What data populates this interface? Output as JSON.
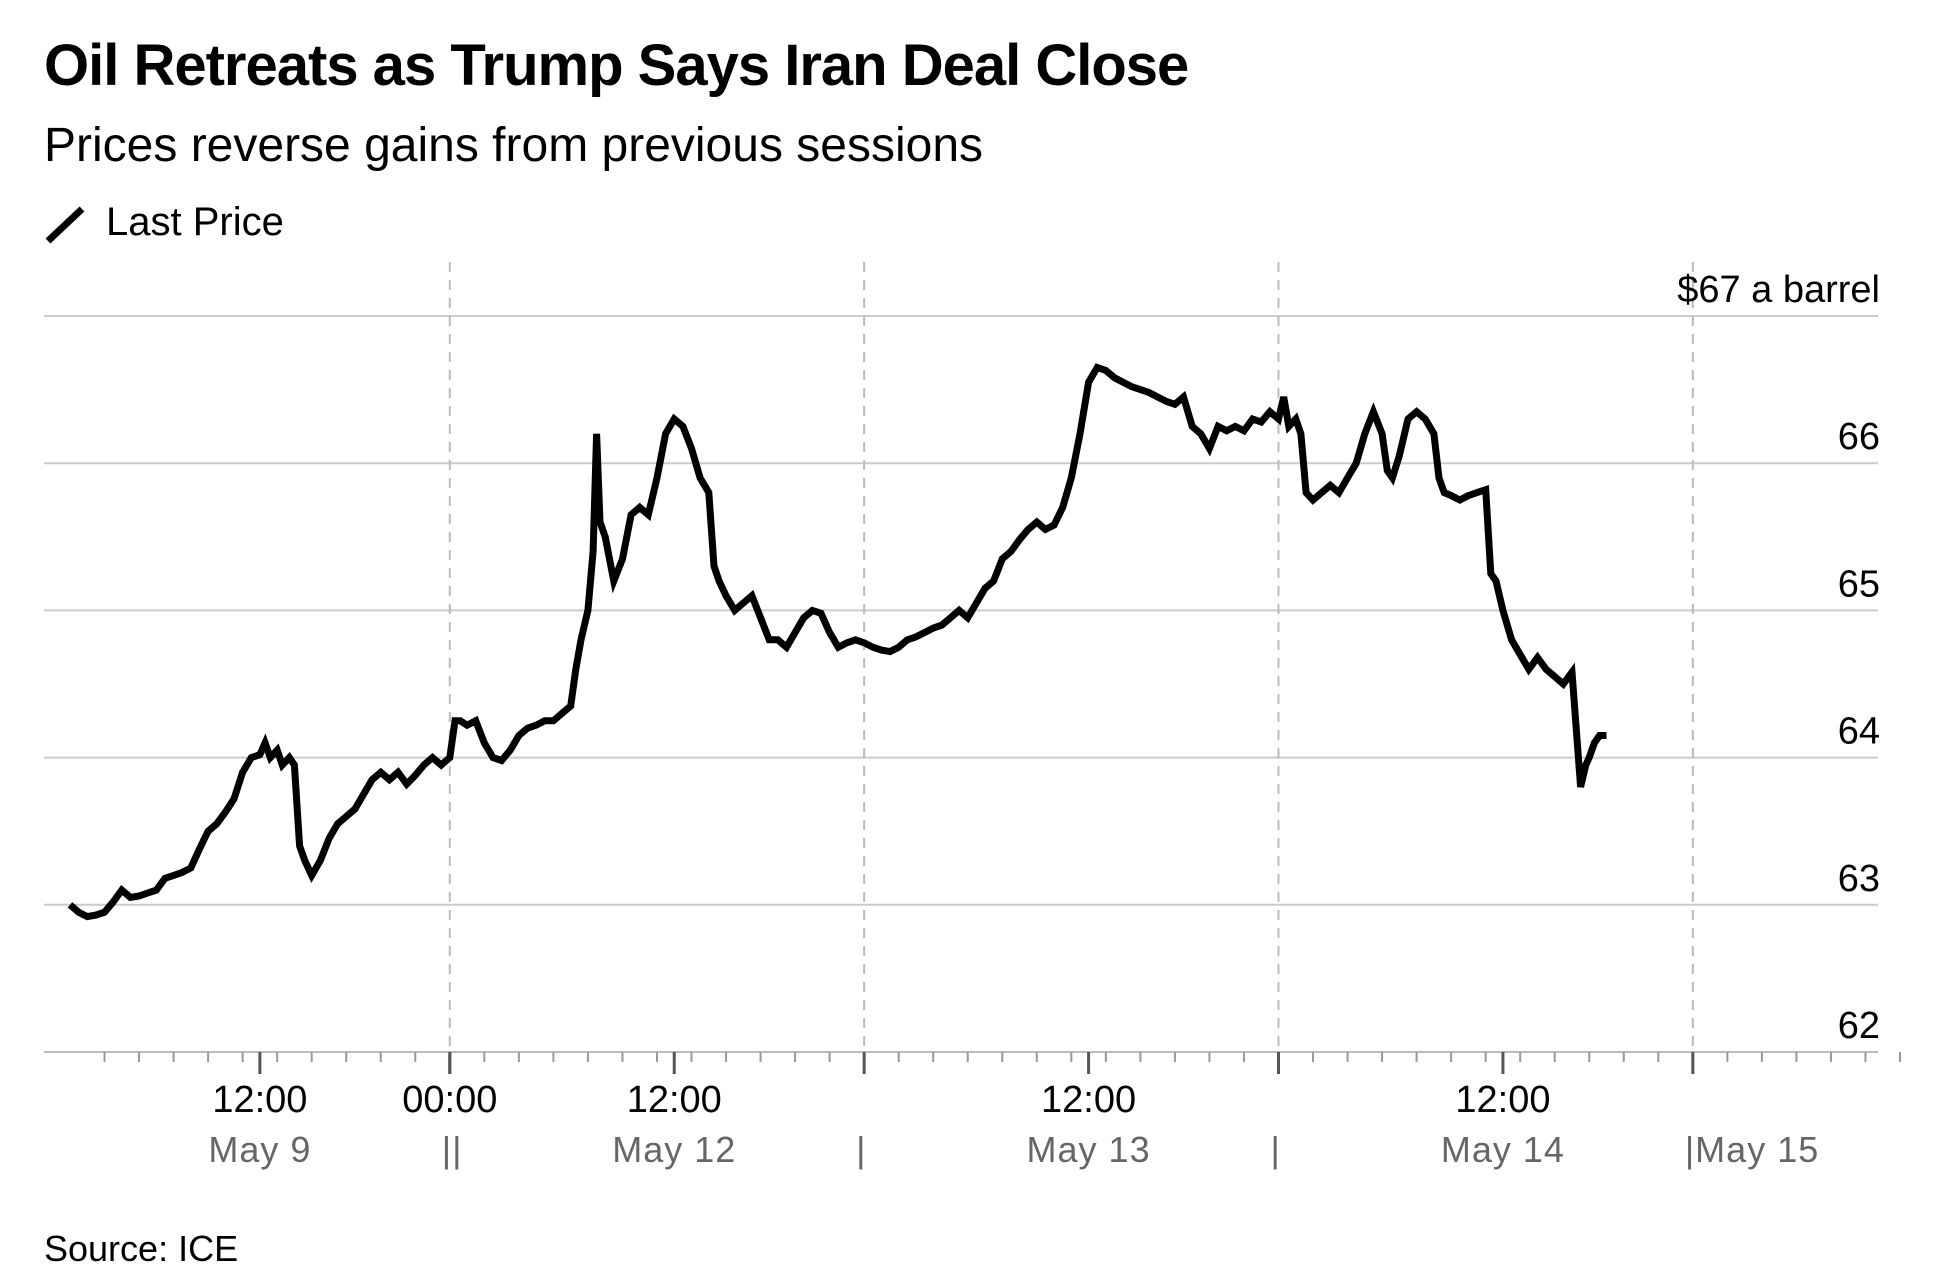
{
  "title": "Oil Retreats as Trump Says Iran Deal Close",
  "subtitle": "Prices reverse gains from previous sessions",
  "source": "Source: ICE",
  "colors": {
    "line": "#000000",
    "grid": "#cccccc",
    "divider": "#bbbbbb",
    "date": "#666666"
  },
  "chart_data": {
    "type": "line",
    "title": "Oil Retreats as Trump Says Iran Deal Close",
    "subtitle": "Prices reverse gains from previous sessions",
    "legend": [
      "Last Price"
    ],
    "legend_position": "top-left",
    "ylabel": "$ a barrel",
    "y_unit_label": "$67 a barrel",
    "ylim": [
      62,
      67
    ],
    "y_ticks": [
      {
        "value": 62,
        "label": "62"
      },
      {
        "value": 63,
        "label": "63"
      },
      {
        "value": 64,
        "label": "64"
      },
      {
        "value": 65,
        "label": "65"
      },
      {
        "value": 66,
        "label": "66"
      },
      {
        "value": 67,
        "label": "$67 a barrel"
      }
    ],
    "grid": true,
    "xlim": [
      0,
      106
    ],
    "x_unit": "trading hours",
    "session_breaks": [
      22,
      46,
      70,
      94
    ],
    "x_ticks": [
      {
        "x": 11,
        "label": "12:00"
      },
      {
        "x": 22,
        "label": "00:00"
      },
      {
        "x": 35,
        "label": "12:00"
      },
      {
        "x": 59,
        "label": "12:00"
      },
      {
        "x": 83,
        "label": "12:00"
      }
    ],
    "date_labels": [
      {
        "x": 11,
        "label": "May 9"
      },
      {
        "x": 22,
        "label": "||"
      },
      {
        "x": 35,
        "label": "May 12"
      },
      {
        "x": 46,
        "label": "|"
      },
      {
        "x": 59,
        "label": "May 13"
      },
      {
        "x": 70,
        "label": "|"
      },
      {
        "x": 83,
        "label": "May 14"
      },
      {
        "x": 94,
        "label": "|May 15"
      }
    ],
    "series": [
      {
        "name": "Last Price",
        "points": [
          [
            0,
            63.0
          ],
          [
            0.5,
            62.95
          ],
          [
            1,
            62.92
          ],
          [
            1.5,
            62.93
          ],
          [
            2,
            62.95
          ],
          [
            2.5,
            63.02
          ],
          [
            3,
            63.1
          ],
          [
            3.5,
            63.05
          ],
          [
            4,
            63.06
          ],
          [
            4.5,
            63.08
          ],
          [
            5,
            63.1
          ],
          [
            5.5,
            63.18
          ],
          [
            6,
            63.2
          ],
          [
            6.5,
            63.22
          ],
          [
            7,
            63.25
          ],
          [
            7.5,
            63.38
          ],
          [
            8,
            63.5
          ],
          [
            8.5,
            63.55
          ],
          [
            9,
            63.63
          ],
          [
            9.5,
            63.72
          ],
          [
            10,
            63.9
          ],
          [
            10.5,
            64.0
          ],
          [
            11,
            64.02
          ],
          [
            11.3,
            64.1
          ],
          [
            11.6,
            64.0
          ],
          [
            12,
            64.05
          ],
          [
            12.3,
            63.95
          ],
          [
            12.7,
            64.0
          ],
          [
            13,
            63.95
          ],
          [
            13.3,
            63.4
          ],
          [
            13.6,
            63.3
          ],
          [
            14,
            63.2
          ],
          [
            14.5,
            63.3
          ],
          [
            15,
            63.45
          ],
          [
            15.5,
            63.55
          ],
          [
            16,
            63.6
          ],
          [
            16.5,
            63.65
          ],
          [
            17,
            63.75
          ],
          [
            17.5,
            63.85
          ],
          [
            18,
            63.9
          ],
          [
            18.5,
            63.85
          ],
          [
            19,
            63.9
          ],
          [
            19.5,
            63.82
          ],
          [
            20,
            63.88
          ],
          [
            20.5,
            63.95
          ],
          [
            21,
            64.0
          ],
          [
            21.5,
            63.95
          ],
          [
            22,
            64.0
          ],
          [
            22.3,
            64.25
          ],
          [
            22.6,
            64.25
          ],
          [
            23,
            64.22
          ],
          [
            23.5,
            64.25
          ],
          [
            24,
            64.1
          ],
          [
            24.5,
            64.0
          ],
          [
            25,
            63.98
          ],
          [
            25.5,
            64.05
          ],
          [
            26,
            64.15
          ],
          [
            26.5,
            64.2
          ],
          [
            27,
            64.22
          ],
          [
            27.5,
            64.25
          ],
          [
            28,
            64.25
          ],
          [
            28.5,
            64.3
          ],
          [
            29,
            64.35
          ],
          [
            29.3,
            64.6
          ],
          [
            29.6,
            64.8
          ],
          [
            30,
            65.0
          ],
          [
            30.3,
            65.4
          ],
          [
            30.5,
            66.2
          ],
          [
            30.7,
            65.6
          ],
          [
            31,
            65.5
          ],
          [
            31.5,
            65.2
          ],
          [
            32,
            65.35
          ],
          [
            32.5,
            65.65
          ],
          [
            33,
            65.7
          ],
          [
            33.5,
            65.65
          ],
          [
            34,
            65.9
          ],
          [
            34.5,
            66.2
          ],
          [
            35,
            66.3
          ],
          [
            35.5,
            66.25
          ],
          [
            36,
            66.1
          ],
          [
            36.5,
            65.9
          ],
          [
            37,
            65.8
          ],
          [
            37.3,
            65.3
          ],
          [
            37.6,
            65.2
          ],
          [
            38,
            65.1
          ],
          [
            38.5,
            65.0
          ],
          [
            39,
            65.05
          ],
          [
            39.5,
            65.1
          ],
          [
            40,
            64.95
          ],
          [
            40.5,
            64.8
          ],
          [
            41,
            64.8
          ],
          [
            41.5,
            64.75
          ],
          [
            42,
            64.85
          ],
          [
            42.5,
            64.95
          ],
          [
            43,
            65.0
          ],
          [
            43.5,
            64.98
          ],
          [
            44,
            64.85
          ],
          [
            44.5,
            64.75
          ],
          [
            45,
            64.78
          ],
          [
            45.5,
            64.8
          ],
          [
            46,
            64.78
          ],
          [
            46.5,
            64.75
          ],
          [
            47,
            64.73
          ],
          [
            47.5,
            64.72
          ],
          [
            48,
            64.75
          ],
          [
            48.5,
            64.8
          ],
          [
            49,
            64.82
          ],
          [
            49.5,
            64.85
          ],
          [
            50,
            64.88
          ],
          [
            50.5,
            64.9
          ],
          [
            51,
            64.95
          ],
          [
            51.5,
            65.0
          ],
          [
            52,
            64.95
          ],
          [
            52.5,
            65.05
          ],
          [
            53,
            65.15
          ],
          [
            53.5,
            65.2
          ],
          [
            54,
            65.35
          ],
          [
            54.5,
            65.4
          ],
          [
            55,
            65.48
          ],
          [
            55.5,
            65.55
          ],
          [
            56,
            65.6
          ],
          [
            56.5,
            65.55
          ],
          [
            57,
            65.58
          ],
          [
            57.5,
            65.7
          ],
          [
            58,
            65.9
          ],
          [
            58.5,
            66.2
          ],
          [
            59,
            66.55
          ],
          [
            59.5,
            66.65
          ],
          [
            60,
            66.63
          ],
          [
            60.5,
            66.58
          ],
          [
            61,
            66.55
          ],
          [
            61.5,
            66.52
          ],
          [
            62,
            66.5
          ],
          [
            62.5,
            66.48
          ],
          [
            63,
            66.45
          ],
          [
            63.5,
            66.42
          ],
          [
            64,
            66.4
          ],
          [
            64.5,
            66.45
          ],
          [
            65,
            66.25
          ],
          [
            65.5,
            66.2
          ],
          [
            66,
            66.1
          ],
          [
            66.5,
            66.25
          ],
          [
            67,
            66.22
          ],
          [
            67.5,
            66.25
          ],
          [
            68,
            66.22
          ],
          [
            68.5,
            66.3
          ],
          [
            69,
            66.28
          ],
          [
            69.5,
            66.35
          ],
          [
            70,
            66.3
          ],
          [
            70.3,
            66.45
          ],
          [
            70.6,
            66.25
          ],
          [
            71,
            66.3
          ],
          [
            71.3,
            66.2
          ],
          [
            71.6,
            65.8
          ],
          [
            72,
            65.75
          ],
          [
            72.5,
            65.8
          ],
          [
            73,
            65.85
          ],
          [
            73.5,
            65.8
          ],
          [
            74,
            65.9
          ],
          [
            74.5,
            66.0
          ],
          [
            75,
            66.2
          ],
          [
            75.5,
            66.35
          ],
          [
            76,
            66.2
          ],
          [
            76.3,
            65.95
          ],
          [
            76.6,
            65.9
          ],
          [
            77,
            66.05
          ],
          [
            77.5,
            66.3
          ],
          [
            78,
            66.35
          ],
          [
            78.5,
            66.3
          ],
          [
            79,
            66.2
          ],
          [
            79.3,
            65.9
          ],
          [
            79.6,
            65.8
          ],
          [
            80,
            65.78
          ],
          [
            80.5,
            65.75
          ],
          [
            81,
            65.78
          ],
          [
            81.5,
            65.8
          ],
          [
            82,
            65.82
          ],
          [
            82.3,
            65.25
          ],
          [
            82.6,
            65.2
          ],
          [
            83,
            65.0
          ],
          [
            83.5,
            64.8
          ],
          [
            84,
            64.7
          ],
          [
            84.5,
            64.6
          ],
          [
            85,
            64.68
          ],
          [
            85.5,
            64.6
          ],
          [
            86,
            64.55
          ],
          [
            86.5,
            64.5
          ],
          [
            87,
            64.58
          ],
          [
            87.5,
            63.8
          ],
          [
            87.8,
            63.95
          ],
          [
            88,
            64.0
          ],
          [
            88.3,
            64.1
          ],
          [
            88.6,
            64.15
          ],
          [
            89,
            64.15
          ]
        ]
      }
    ]
  }
}
